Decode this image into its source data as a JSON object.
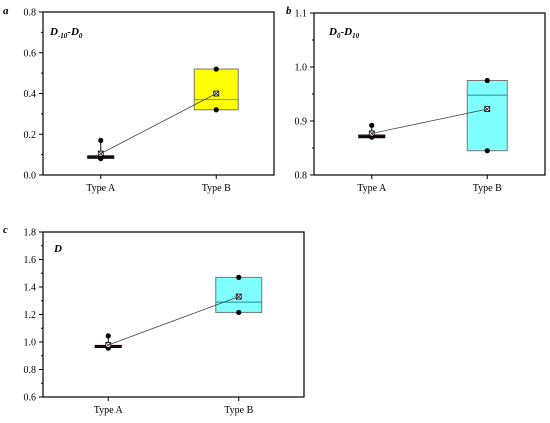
{
  "chart_data": [
    {
      "type": "box",
      "panel_letter": "a",
      "title_parts": [
        {
          "t": "D",
          "sub": false
        },
        {
          "t": "-10",
          "sub": true
        },
        {
          "t": "-D",
          "sub": false
        },
        {
          "t": "0",
          "sub": true
        }
      ],
      "title": "D-10-D0",
      "categories": [
        "Type A",
        "Type B"
      ],
      "ylim": [
        0,
        0.8
      ],
      "yticks": [
        0.0,
        0.2,
        0.4,
        0.6,
        0.8
      ],
      "ytick_labels": [
        "0.0",
        "0.2",
        "0.4",
        "0.6",
        "0.8"
      ],
      "box_color": "#ffff00",
      "median_line_color": "#b8860b",
      "boxes": [
        {
          "category": "Type A",
          "min": 0.08,
          "q1": 0.082,
          "median": 0.088,
          "q3": 0.094,
          "max": 0.17,
          "mean": 0.105,
          "points": [
            0.17,
            0.09,
            0.08
          ]
        },
        {
          "category": "Type B",
          "min": 0.32,
          "q1": 0.32,
          "median": 0.37,
          "q3": 0.52,
          "max": 0.52,
          "mean": 0.4,
          "points": [
            0.52,
            0.32
          ]
        }
      ]
    },
    {
      "type": "box",
      "panel_letter": "b",
      "title_parts": [
        {
          "t": "D",
          "sub": false
        },
        {
          "t": "0",
          "sub": true
        },
        {
          "t": "-D",
          "sub": false
        },
        {
          "t": "10",
          "sub": true
        }
      ],
      "title": "D0-D10",
      "categories": [
        "Type A",
        "Type B"
      ],
      "ylim": [
        0.8,
        1.1
      ],
      "yticks": [
        0.8,
        0.9,
        1.0,
        1.1
      ],
      "ytick_labels": [
        "0.8",
        "0.9",
        "1.0",
        "1.1"
      ],
      "box_color": "#7fffff",
      "median_line_color": "#2e8b9a",
      "boxes": [
        {
          "category": "Type A",
          "min": 0.868,
          "q1": 0.869,
          "median": 0.871,
          "q3": 0.874,
          "max": 0.892,
          "mean": 0.877,
          "points": [
            0.892,
            0.87
          ]
        },
        {
          "category": "Type B",
          "min": 0.845,
          "q1": 0.845,
          "median": 0.948,
          "q3": 0.975,
          "max": 0.975,
          "mean": 0.922,
          "points": [
            0.975,
            0.845
          ]
        }
      ]
    },
    {
      "type": "box",
      "panel_letter": "c",
      "title_parts": [
        {
          "t": "D",
          "sub": false
        }
      ],
      "title": "D",
      "categories": [
        "Type A",
        "Type B"
      ],
      "ylim": [
        0.6,
        1.8
      ],
      "yticks": [
        0.6,
        0.8,
        1.0,
        1.2,
        1.4,
        1.6,
        1.8
      ],
      "ytick_labels": [
        "0.6",
        "0.8",
        "1.0",
        "1.2",
        "1.4",
        "1.6",
        "1.8"
      ],
      "box_color": "#7fffff",
      "median_line_color": "#2e8b9a",
      "boxes": [
        {
          "category": "Type A",
          "min": 0.955,
          "q1": 0.96,
          "median": 0.97,
          "q3": 0.975,
          "max": 1.045,
          "mean": 0.978,
          "points": [
            1.045,
            0.96,
            0.955
          ]
        },
        {
          "category": "Type B",
          "min": 1.215,
          "q1": 1.215,
          "median": 1.29,
          "q3": 1.47,
          "max": 1.47,
          "mean": 1.33,
          "points": [
            1.47,
            1.215
          ]
        }
      ]
    }
  ]
}
